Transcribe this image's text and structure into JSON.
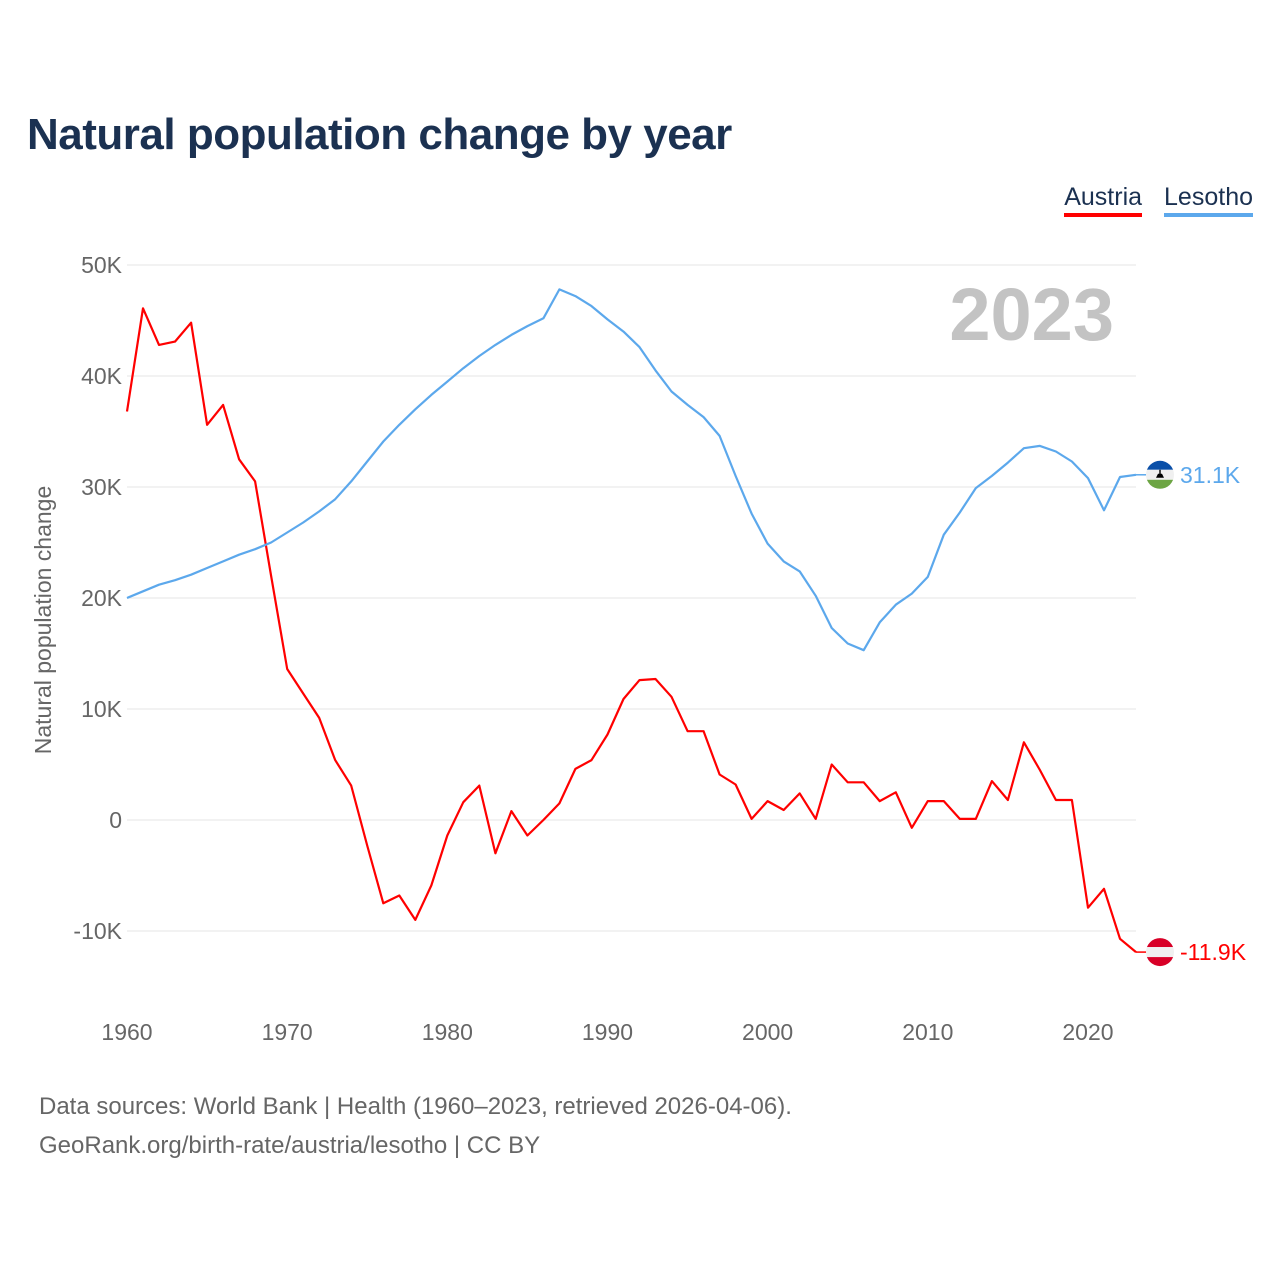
{
  "chart_data": {
    "type": "line",
    "title": "Natural population change by year",
    "xlabel": "",
    "ylabel": "Natural population change",
    "xlim": [
      1960,
      2023
    ],
    "ylim": [
      -15000,
      50000
    ],
    "x_ticks": [
      1960,
      1970,
      1980,
      1990,
      2000,
      2010,
      2020
    ],
    "x_tick_labels": [
      "1960",
      "1970",
      "1980",
      "1990",
      "2000",
      "2010",
      "2020"
    ],
    "y_ticks": [
      -10000,
      0,
      10000,
      20000,
      30000,
      40000,
      50000
    ],
    "y_tick_labels": [
      "-10K",
      "0",
      "10K",
      "20K",
      "30K",
      "40K",
      "50K"
    ],
    "grid": true,
    "legend_position": "top-right",
    "year_overlay": "2023",
    "x": [
      1960,
      1961,
      1962,
      1963,
      1964,
      1965,
      1966,
      1967,
      1968,
      1969,
      1970,
      1971,
      1972,
      1973,
      1974,
      1975,
      1976,
      1977,
      1978,
      1979,
      1980,
      1981,
      1982,
      1983,
      1984,
      1985,
      1986,
      1987,
      1988,
      1989,
      1990,
      1991,
      1992,
      1993,
      1994,
      1995,
      1996,
      1997,
      1998,
      1999,
      2000,
      2001,
      2002,
      2003,
      2004,
      2005,
      2006,
      2007,
      2008,
      2009,
      2010,
      2011,
      2012,
      2013,
      2014,
      2015,
      2016,
      2017,
      2018,
      2019,
      2020,
      2021,
      2022,
      2023
    ],
    "series": [
      {
        "name": "Austria",
        "color": "#ff0000",
        "end_label": "-11.9K",
        "values": [
          36800,
          46100,
          42800,
          43100,
          44800,
          35600,
          37400,
          32500,
          30500,
          22000,
          13600,
          11400,
          9200,
          5400,
          3100,
          -2300,
          -7500,
          -6800,
          -9000,
          -5900,
          -1400,
          1600,
          3100,
          -3000,
          800,
          -1400,
          0,
          1500,
          4600,
          5400,
          7700,
          10900,
          12600,
          12700,
          11100,
          8000,
          8000,
          4100,
          3200,
          100,
          1700,
          900,
          2400,
          100,
          5000,
          3400,
          3400,
          1700,
          2500,
          -700,
          1700,
          1700,
          100,
          100,
          3500,
          1800,
          7000,
          4500,
          1800,
          1800,
          -7900,
          -6200,
          -10700,
          -11900
        ]
      },
      {
        "name": "Lesotho",
        "color": "#5ca8ec",
        "end_label": "31.1K",
        "values": [
          20000,
          20600,
          21200,
          21600,
          22100,
          22700,
          23300,
          23900,
          24400,
          25000,
          25900,
          26800,
          27800,
          28900,
          30500,
          32300,
          34100,
          35600,
          37000,
          38300,
          39500,
          40700,
          41800,
          42800,
          43700,
          44500,
          45200,
          47800,
          47200,
          46300,
          45100,
          44000,
          42600,
          40500,
          38600,
          37400,
          36300,
          34600,
          31000,
          27600,
          24900,
          23300,
          22400,
          20200,
          17300,
          15900,
          15300,
          17800,
          19400,
          20400,
          21900,
          25700,
          27700,
          29900,
          31000,
          32200,
          33500,
          33700,
          33200,
          32300,
          30800,
          27900,
          30900,
          31100
        ]
      }
    ]
  },
  "footer": {
    "line1": "Data sources: World Bank | Health (1960–2023, retrieved 2026-04-06).",
    "line2": "GeoRank.org/birth-rate/austria/lesotho | CC BY"
  }
}
